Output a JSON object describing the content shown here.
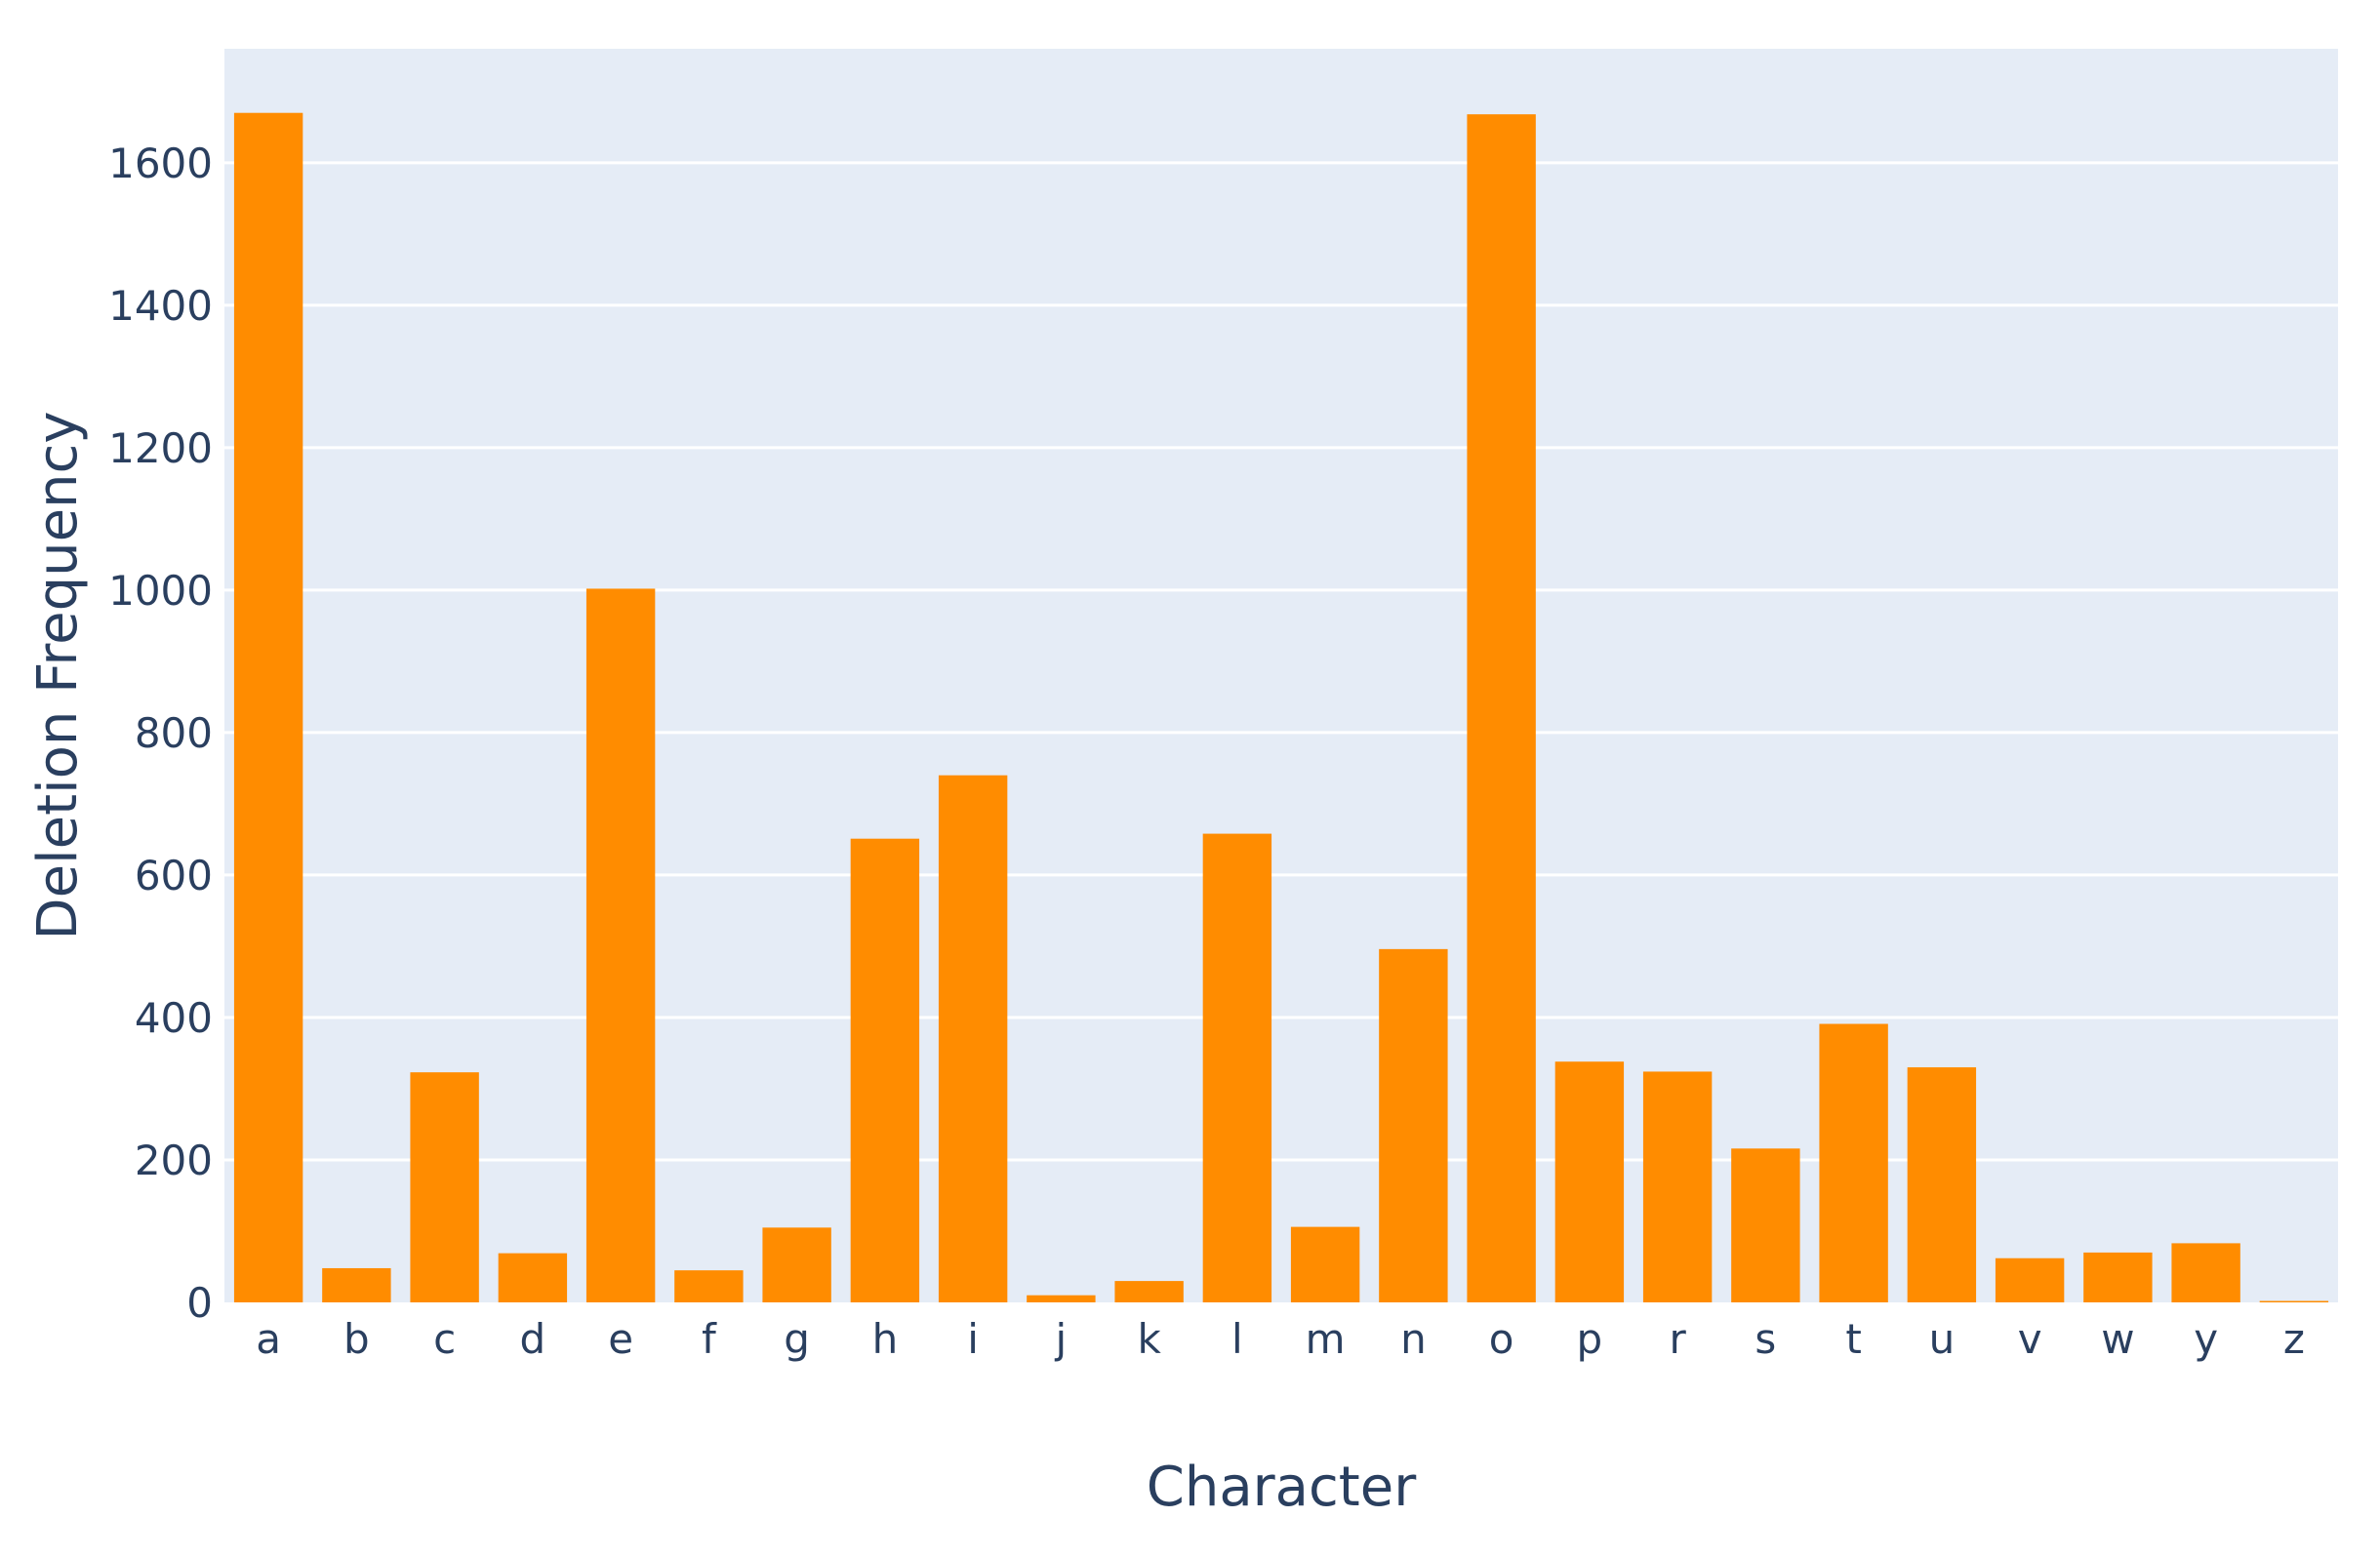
{
  "chart_data": {
    "type": "bar",
    "title": "",
    "xlabel": "Character",
    "ylabel": "Deletion Frequency",
    "categories": [
      "a",
      "b",
      "c",
      "d",
      "e",
      "f",
      "g",
      "h",
      "i",
      "j",
      "k",
      "l",
      "m",
      "n",
      "o",
      "p",
      "r",
      "s",
      "t",
      "u",
      "v",
      "w",
      "y",
      "z"
    ],
    "values": [
      1670,
      48,
      323,
      69,
      1002,
      45,
      105,
      651,
      740,
      10,
      30,
      658,
      106,
      496,
      1668,
      338,
      324,
      216,
      391,
      330,
      62,
      70,
      83,
      2
    ],
    "ylim": [
      0,
      1760
    ],
    "yticks": [
      0,
      200,
      400,
      600,
      800,
      1000,
      1200,
      1400,
      1600
    ],
    "ytick_labels": [
      "0",
      "200",
      "400",
      "600",
      "800",
      "1000",
      "1200",
      "1400",
      "1600"
    ],
    "grid": true,
    "bar_color": "#ff8c00",
    "plot_background": "#e5ecf6",
    "gridline_color": "#ffffff",
    "text_color": "#2a3f5f"
  }
}
